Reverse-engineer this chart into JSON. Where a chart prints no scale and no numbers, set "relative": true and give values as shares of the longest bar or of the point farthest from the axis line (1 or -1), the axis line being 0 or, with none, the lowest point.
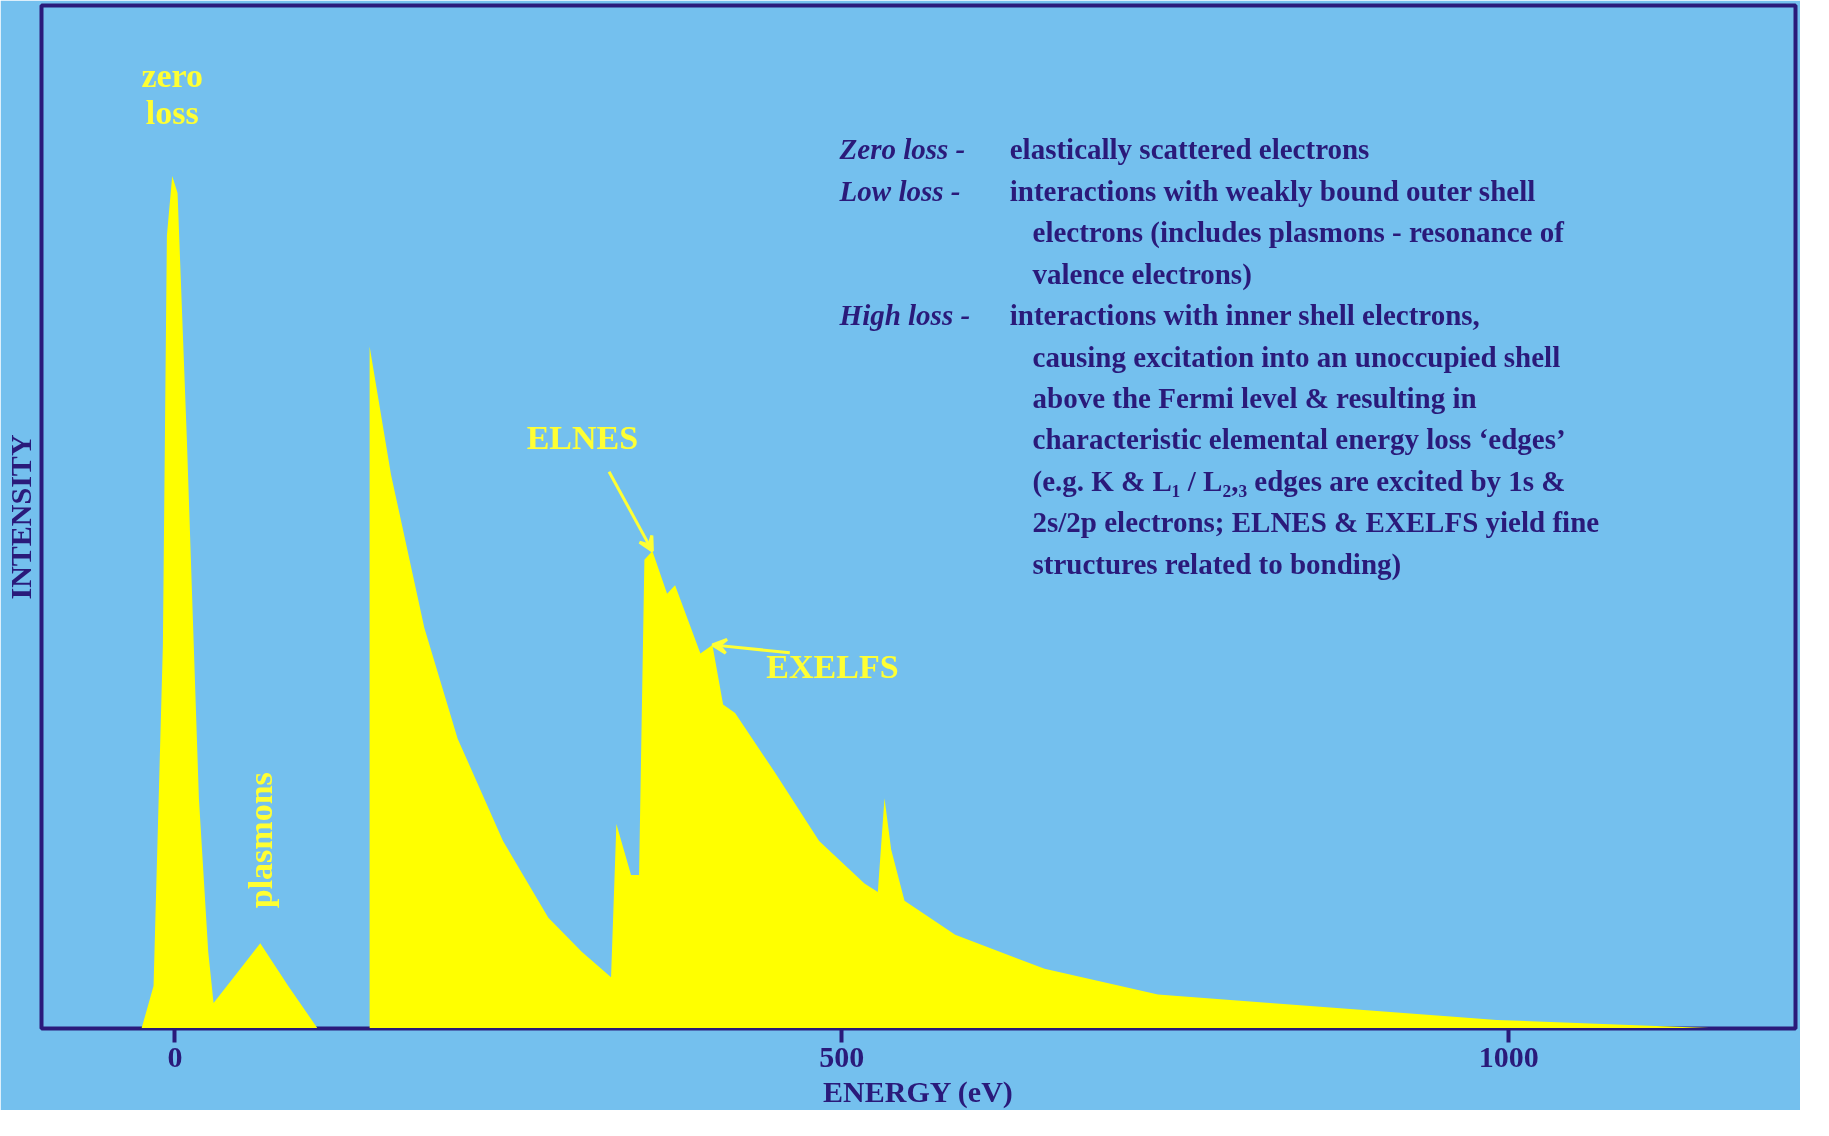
{
  "chart_data": {
    "type": "area",
    "relative": true,
    "xlabel": "ENERGY (eV)",
    "ylabel": "INTENSITY",
    "x": [
      -25,
      -16,
      -9,
      -6,
      -2,
      2,
      9,
      18,
      25,
      29,
      39,
      64,
      85,
      107,
      146,
      146,
      162,
      187,
      212,
      246,
      280,
      305,
      327,
      331,
      342,
      348,
      352,
      358,
      369,
      375,
      394,
      403,
      411,
      420,
      450,
      483,
      517,
      527,
      532,
      537,
      547,
      585,
      652,
      737,
      821,
      991,
      1160,
      1211
    ],
    "values": [
      0,
      0.05,
      0.45,
      0.93,
      1.0,
      0.98,
      0.69,
      0.27,
      0.09,
      0.03,
      0.05,
      0.1,
      0.05,
      0,
      0,
      0.8,
      0.65,
      0.47,
      0.34,
      0.22,
      0.13,
      0.09,
      0.06,
      0.24,
      0.18,
      0.18,
      0.55,
      0.56,
      0.51,
      0.52,
      0.44,
      0.45,
      0.38,
      0.37,
      0.3,
      0.22,
      0.17,
      0.16,
      0.27,
      0.21,
      0.15,
      0.11,
      0.07,
      0.04,
      0.03,
      0.01,
      0,
      0
    ],
    "color": "#ffff00",
    "xlim": [
      -100,
      1215
    ],
    "xticks": [
      0,
      500,
      1000
    ],
    "grid": false,
    "annotations": [
      {
        "text": "zero\nloss",
        "x": -2,
        "y": 1.0
      },
      {
        "text": "plasmons",
        "x": 64,
        "y": 0.1
      },
      {
        "text": "ELNES",
        "x": 358,
        "y": 0.56
      },
      {
        "text": "EXELFS",
        "x": 403,
        "y": 0.45
      },
      "Zero loss - elastically scattered electrons",
      "Low loss - interactions with weakly bound outer shell electrons (includes plasmons - resonance of valence electrons)",
      "High loss - interactions with inner shell electrons, causing excitation into an unoccupied shell above the Fermi level & resulting in characteristic elemental energy loss ‘edges’ (e.g. K & L₁ / L₂,₃ edges are excited by 1s & 2s/2p electrons; ELNES & EXELFS yield fine structures related to bonding)"
    ]
  }
}
